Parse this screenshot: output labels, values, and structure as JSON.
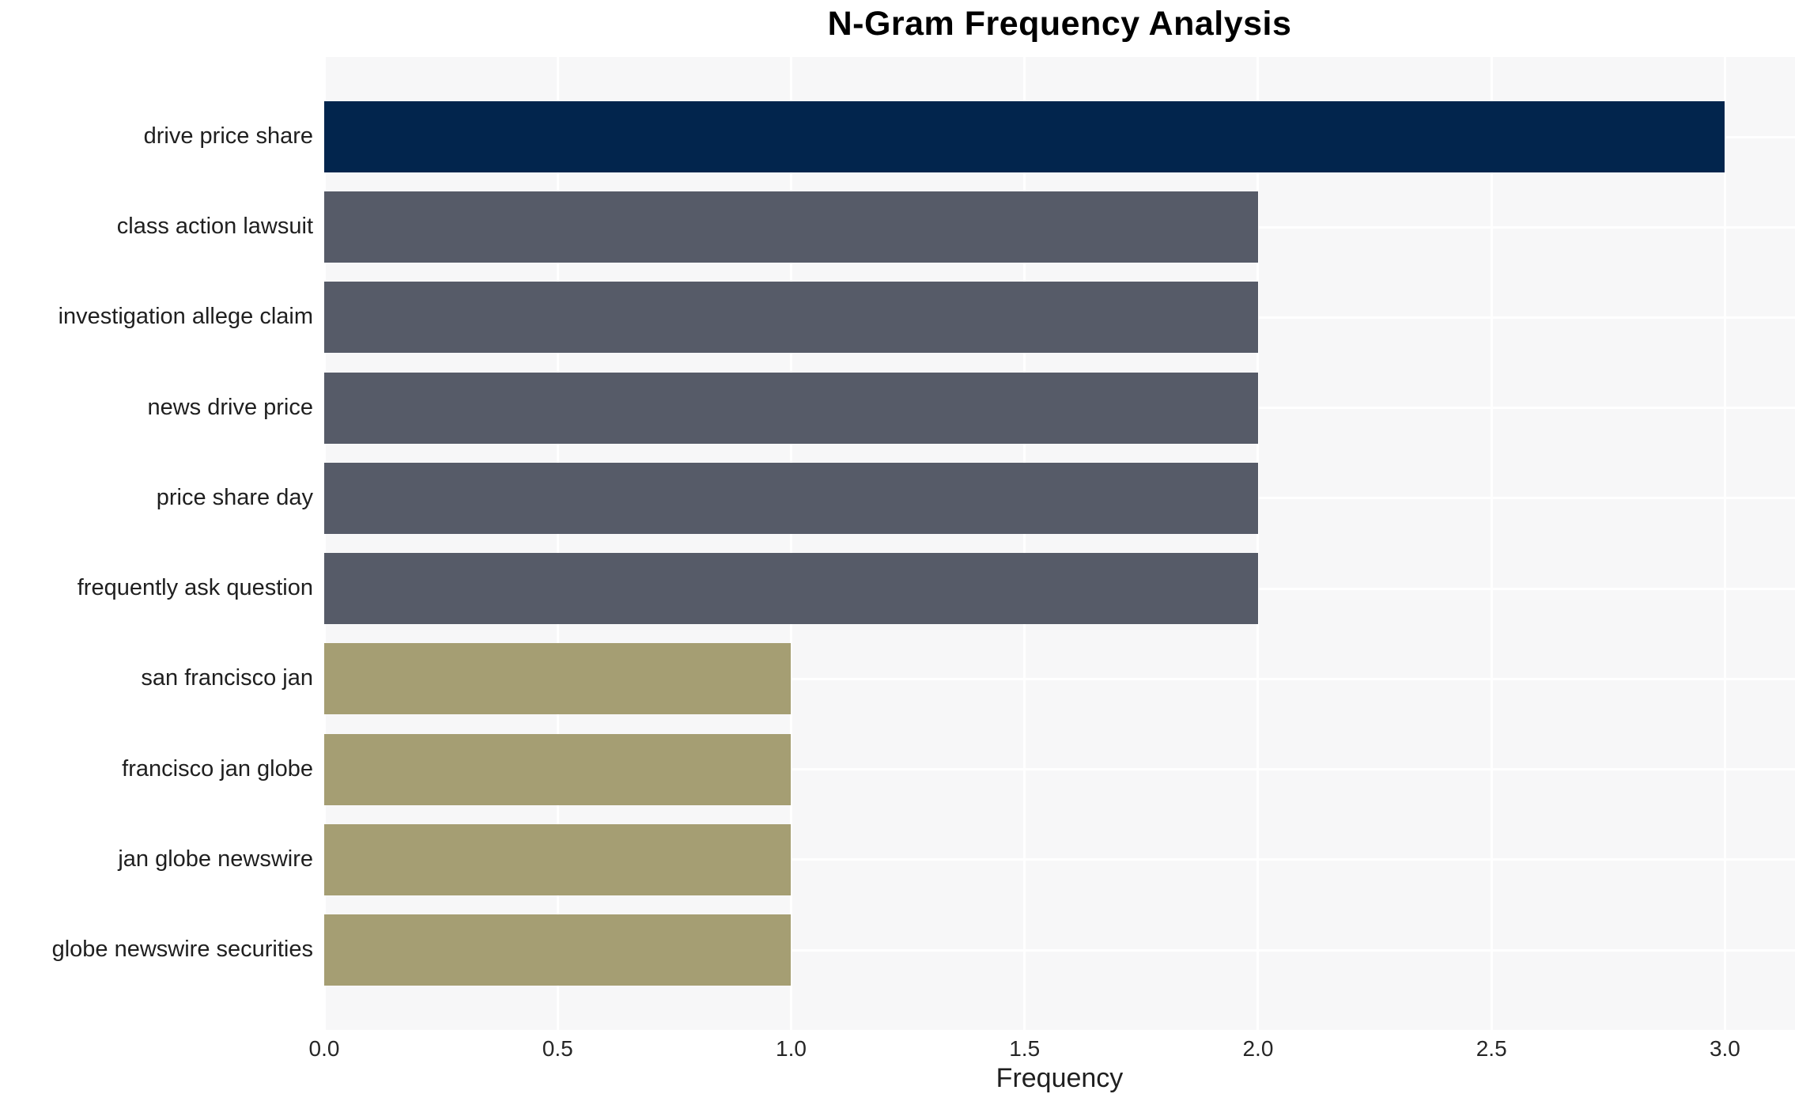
{
  "page": {
    "background_color": "#ffffff",
    "text_color": "#1f1f1f"
  },
  "chart_data": {
    "type": "bar",
    "orientation": "horizontal",
    "title": "N-Gram Frequency Analysis",
    "xlabel": "Frequency",
    "ylabel": "",
    "categories": [
      "drive price share",
      "class action lawsuit",
      "investigation allege claim",
      "news drive price",
      "price share day",
      "frequently ask question",
      "san francisco jan",
      "francisco jan globe",
      "jan globe newswire",
      "globe newswire securities"
    ],
    "values": [
      3,
      2,
      2,
      2,
      2,
      2,
      1,
      1,
      1,
      1
    ],
    "bar_colors": [
      "#02254d",
      "#565b68",
      "#565b68",
      "#565b68",
      "#565b68",
      "#565b68",
      "#a59e73",
      "#a59e73",
      "#a59e73",
      "#a59e73"
    ],
    "palette_legend": {
      "frequency_3": "#02254d",
      "frequency_2": "#565b68",
      "frequency_1": "#a59e73"
    },
    "xlim": [
      0,
      3.15
    ],
    "x_ticks": [
      {
        "label": "0.0",
        "value": 0.0
      },
      {
        "label": "0.5",
        "value": 0.5
      },
      {
        "label": "1.0",
        "value": 1.0
      },
      {
        "label": "1.5",
        "value": 1.5
      },
      {
        "label": "2.0",
        "value": 2.0
      },
      {
        "label": "2.5",
        "value": 2.5
      },
      {
        "label": "3.0",
        "value": 3.0
      }
    ],
    "grid": "both",
    "legend": "none",
    "plot_background_color": "#f7f7f8",
    "grid_color": "#ffffff"
  }
}
